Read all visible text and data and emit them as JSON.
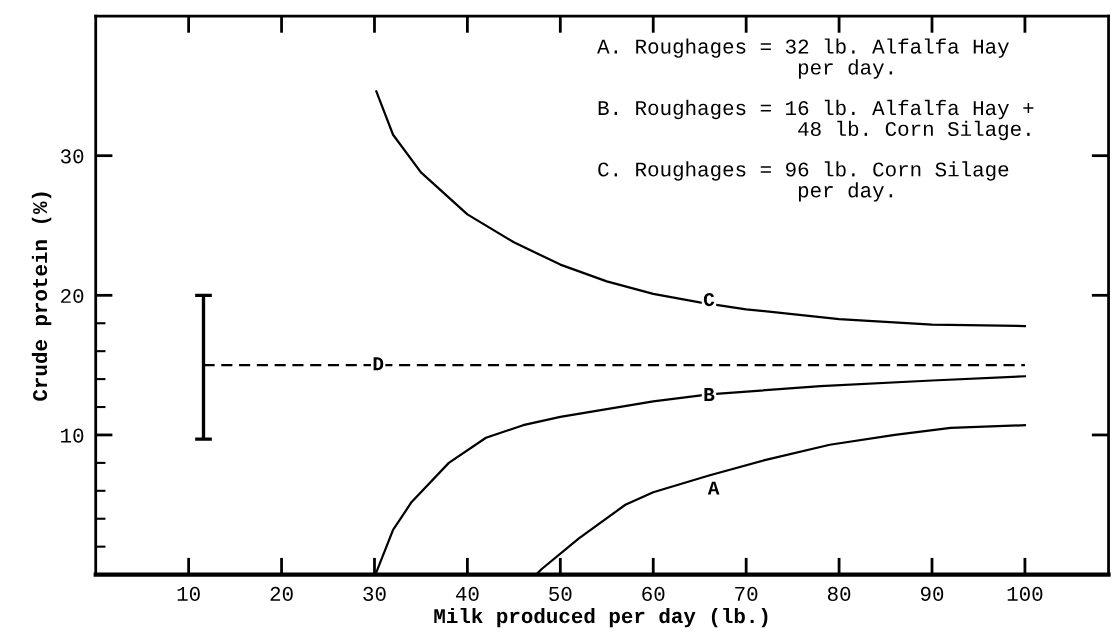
{
  "chart_data": {
    "type": "line",
    "xlabel": "Milk produced per day (lb.)",
    "ylabel": "Crude protein (%)",
    "xlim": [
      0,
      109
    ],
    "ylim": [
      0,
      40
    ],
    "xticks": [
      10,
      20,
      30,
      40,
      50,
      60,
      70,
      80,
      90,
      100
    ],
    "yticks": [
      {
        "value": 2,
        "label": null
      },
      {
        "value": 4,
        "label": null
      },
      {
        "value": 6,
        "label": null
      },
      {
        "value": 8,
        "label": null
      },
      10,
      {
        "value": 12,
        "label": null
      },
      {
        "value": 14,
        "label": null
      },
      {
        "value": 16,
        "label": null
      },
      {
        "value": 18,
        "label": null
      },
      20,
      30
    ],
    "grid": false,
    "marker": "none",
    "series": [
      {
        "color": "#000000",
        "x": [
          47.4,
          48,
          52,
          57,
          60,
          66,
          72,
          79,
          86,
          92,
          100
        ],
        "values": [
          0,
          0.4,
          2.6,
          5.0,
          5.9,
          7.1,
          8.2,
          9.3,
          10.0,
          10.5,
          10.7
        ]
      },
      {
        "color": "#000000",
        "x": [
          30.1,
          32,
          34,
          38,
          42,
          46,
          50,
          60,
          66,
          78,
          90,
          100
        ],
        "values": [
          0,
          3.2,
          5.2,
          8.0,
          9.8,
          10.7,
          11.3,
          12.4,
          12.9,
          13.5,
          13.9,
          14.2
        ]
      },
      {
        "color": "#000000",
        "x": [
          30.2,
          32,
          35,
          40,
          45,
          50,
          55,
          60,
          65,
          70,
          80,
          90,
          100
        ],
        "values": [
          34.6,
          31.5,
          28.8,
          25.8,
          23.8,
          22.2,
          21.0,
          20.1,
          19.5,
          19.0,
          18.3,
          17.9,
          17.8
        ]
      },
      {
        "color": "#000000",
        "line_style": "dashed",
        "x": [
          11.6,
          100
        ],
        "values": [
          15,
          15
        ],
        "errors": [
          [
            9.7,
            20
          ],
          null
        ]
      }
    ],
    "annotations": [
      {
        "text": "A",
        "x": 66.5,
        "y": 6.1
      },
      {
        "text": "B",
        "x": 66,
        "y": 12.8
      },
      {
        "text": "C",
        "x": 66,
        "y": 19.6
      },
      {
        "text": "D",
        "x": 30.4,
        "y": 15
      },
      "A. Roughages = 32 lb. Alfalfa Hay\n                per day.",
      "B. Roughages = 16 lb. Alfalfa Hay +\n                48 lb. Corn Silage.",
      "C. Roughages = 96 lb. Corn Silage\n                per day."
    ]
  }
}
